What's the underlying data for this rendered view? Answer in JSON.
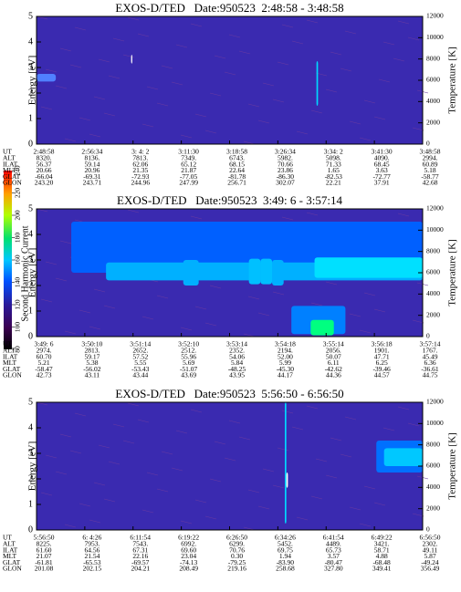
{
  "chart_data": [
    {
      "type": "spectrogram",
      "title": "EXOS-D/TED   Date:950523  2:48:58 - 3:48:58",
      "ylabel": "Energy [eV]",
      "y2label": "Temperature [K]",
      "ylim": [
        0,
        5
      ],
      "yticks": [
        0,
        1,
        2,
        3,
        4,
        5
      ],
      "y2lim": [
        0,
        12000
      ],
      "y2ticks": [
        0,
        2000,
        4000,
        6000,
        8000,
        10000,
        12000
      ],
      "orbit": [
        {
          "label": "UT",
          "values": [
            "2:48:58",
            "2:56:34",
            "3: 4: 2",
            "3:11:30",
            "3:18:58",
            "3:26:34",
            "3:34: 2",
            "3:41:30",
            "3:48:58"
          ]
        },
        {
          "label": "ALT",
          "values": [
            "8320.",
            "8136.",
            "7813.",
            "7349.",
            "6743.",
            "5982.",
            "5098.",
            "4090.",
            "2994."
          ]
        },
        {
          "label": "ILAT",
          "values": [
            "56.37",
            "59.14",
            "62.06",
            "65.12",
            "68.15",
            "70.66",
            "71.33",
            "68.45",
            "60.89"
          ]
        },
        {
          "label": "MLT",
          "values": [
            "20.66",
            "20.96",
            "21.35",
            "21.87",
            "22.64",
            "23.86",
            "1.65",
            "3.63",
            "5.18"
          ]
        },
        {
          "label": "GLAT",
          "values": [
            "-66.04",
            "-69.31",
            "-72.93",
            "-77.05",
            "-81.78",
            "-86.30",
            "-82.53",
            "-72.77",
            "-58.77"
          ]
        },
        {
          "label": "GLON",
          "values": [
            "243.20",
            "243.71",
            "244.96",
            "247.99",
            "256.71",
            "302.07",
            "22.21",
            "37.91",
            "42.68"
          ]
        }
      ]
    },
    {
      "type": "spectrogram",
      "title": "EXOS-D/TED   Date:950523  3:49: 6 - 3:57:14",
      "ylabel": "Energy [eV]",
      "y2label": "Temperature [K]",
      "ylim": [
        0,
        5
      ],
      "yticks": [
        0,
        1,
        2,
        3,
        4,
        5
      ],
      "y2lim": [
        0,
        12000
      ],
      "y2ticks": [
        0,
        2000,
        4000,
        6000,
        8000,
        10000,
        12000
      ],
      "orbit": [
        {
          "label": "UT",
          "values": [
            "3:49: 6",
            "3:50:10",
            "3:51:14",
            "3:52:10",
            "3:53:14",
            "3:54:18",
            "3:55:14",
            "3:56:18",
            "3:57:14"
          ]
        },
        {
          "label": "ALT",
          "values": [
            "2974.",
            "2813.",
            "2652.",
            "2512.",
            "2352.",
            "2194.",
            "2056.",
            "1901.",
            "1767."
          ]
        },
        {
          "label": "ILAT",
          "values": [
            "60.70",
            "59.17",
            "57.52",
            "55.96",
            "54.06",
            "52.00",
            "50.07",
            "47.71",
            "45.49"
          ]
        },
        {
          "label": "MLT",
          "values": [
            "5.21",
            "5.38",
            "5.55",
            "5.69",
            "5.84",
            "5.99",
            "6.11",
            "6.25",
            "6.36"
          ]
        },
        {
          "label": "GLAT",
          "values": [
            "-58.47",
            "-56.02",
            "-53.43",
            "-51.07",
            "-48.25",
            "-45.30",
            "-42.62",
            "-39.46",
            "-36.61"
          ]
        },
        {
          "label": "GLON",
          "values": [
            "42.73",
            "43.11",
            "43.44",
            "43.69",
            "43.95",
            "44.17",
            "44.36",
            "44.57",
            "44.75"
          ]
        }
      ]
    },
    {
      "type": "spectrogram",
      "title": "EXOS-D/TED   Date:950523  5:56:50 - 6:56:50",
      "ylabel": "Energy [eV]",
      "y2label": "Temperature [K]",
      "ylim": [
        0,
        5
      ],
      "yticks": [
        0,
        1,
        2,
        3,
        4,
        5
      ],
      "y2lim": [
        0,
        12000
      ],
      "y2ticks": [
        0,
        2000,
        4000,
        6000,
        8000,
        10000,
        12000
      ],
      "orbit": [
        {
          "label": "UT",
          "values": [
            "5:56:50",
            "6: 4:26",
            "6:11:54",
            "6:19:22",
            "6:26:50",
            "6:34:26",
            "6:41:54",
            "6:49:22",
            "6:56:50"
          ]
        },
        {
          "label": "ALT",
          "values": [
            "8225.",
            "7953.",
            "7543.",
            "6992.",
            "6299.",
            "5452.",
            "4489.",
            "3421.",
            "2302."
          ]
        },
        {
          "label": "ILAT",
          "values": [
            "61.60",
            "64.56",
            "67.31",
            "69.60",
            "70.76",
            "69.75",
            "65.73",
            "58.71",
            "49.11"
          ]
        },
        {
          "label": "MLT",
          "values": [
            "21.07",
            "21.54",
            "22.16",
            "23.04",
            "0.30",
            "1.94",
            "3.57",
            "4.88",
            "5.87"
          ]
        },
        {
          "label": "GLAT",
          "values": [
            "-61.81",
            "-65.53",
            "-69.57",
            "-74.13",
            "-79.25",
            "-83.90",
            "-80.47",
            "-68.48",
            "-49.24"
          ]
        },
        {
          "label": "GLON",
          "values": [
            "201.08",
            "202.15",
            "204.21",
            "208.49",
            "219.16",
            "258.68",
            "327.80",
            "349.41",
            "356.49"
          ]
        }
      ]
    }
  ],
  "colorbar": {
    "label": "Second Harmonic Current",
    "lim": [
      80,
      240
    ],
    "ticks": [
      80,
      100,
      120,
      140,
      160,
      180,
      200,
      220,
      240
    ]
  }
}
